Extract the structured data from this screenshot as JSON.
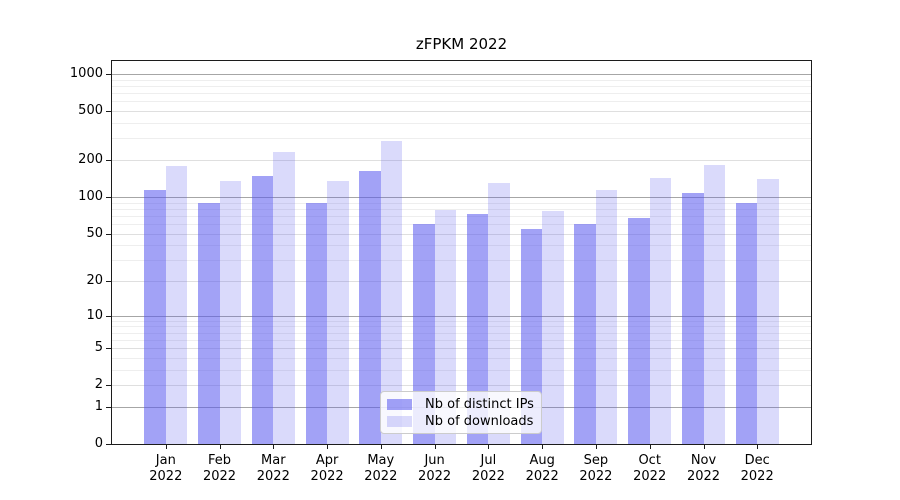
{
  "title": "zFPKM 2022",
  "legend": {
    "items": [
      {
        "label": "Nb of distinct IPs",
        "color": "rgba(85,85,238,0.55)"
      },
      {
        "label": "Nb of downloads",
        "color": "rgba(85,85,238,0.22)"
      }
    ],
    "position": "lower center"
  },
  "colors": {
    "bar_distinct_ips": "rgba(85,85,238,0.55)",
    "bar_downloads": "rgba(85,85,238,0.22)",
    "grid_decade": "#a6a6a6",
    "grid_labeled": "#dfdfdf",
    "grid_minor": "#eeeeee",
    "spine": "#1c1c1c",
    "text": "#000000"
  },
  "chart_data": {
    "type": "bar",
    "title": "zFPKM 2022",
    "categories": [
      "Jan 2022",
      "Feb 2022",
      "Mar 2022",
      "Apr 2022",
      "May 2022",
      "Jun 2022",
      "Jul 2022",
      "Aug 2022",
      "Sep 2022",
      "Oct 2022",
      "Nov 2022",
      "Dec 2022"
    ],
    "series": [
      {
        "name": "Nb of distinct IPs",
        "values": [
          115,
          90,
          148,
          89,
          164,
          60,
          72,
          54,
          60,
          67,
          107,
          89
        ]
      },
      {
        "name": "Nb of downloads",
        "values": [
          178,
          134,
          234,
          135,
          286,
          78,
          129,
          76,
          113,
          142,
          184,
          139
        ]
      }
    ],
    "xlabel": "",
    "ylabel": "",
    "yscale": "log1p",
    "yticks": [
      0,
      1,
      2,
      5,
      10,
      20,
      50,
      100,
      200,
      500,
      1000
    ],
    "ylim": [
      0,
      1280
    ],
    "grid": "both",
    "legend_position": "lower center"
  }
}
